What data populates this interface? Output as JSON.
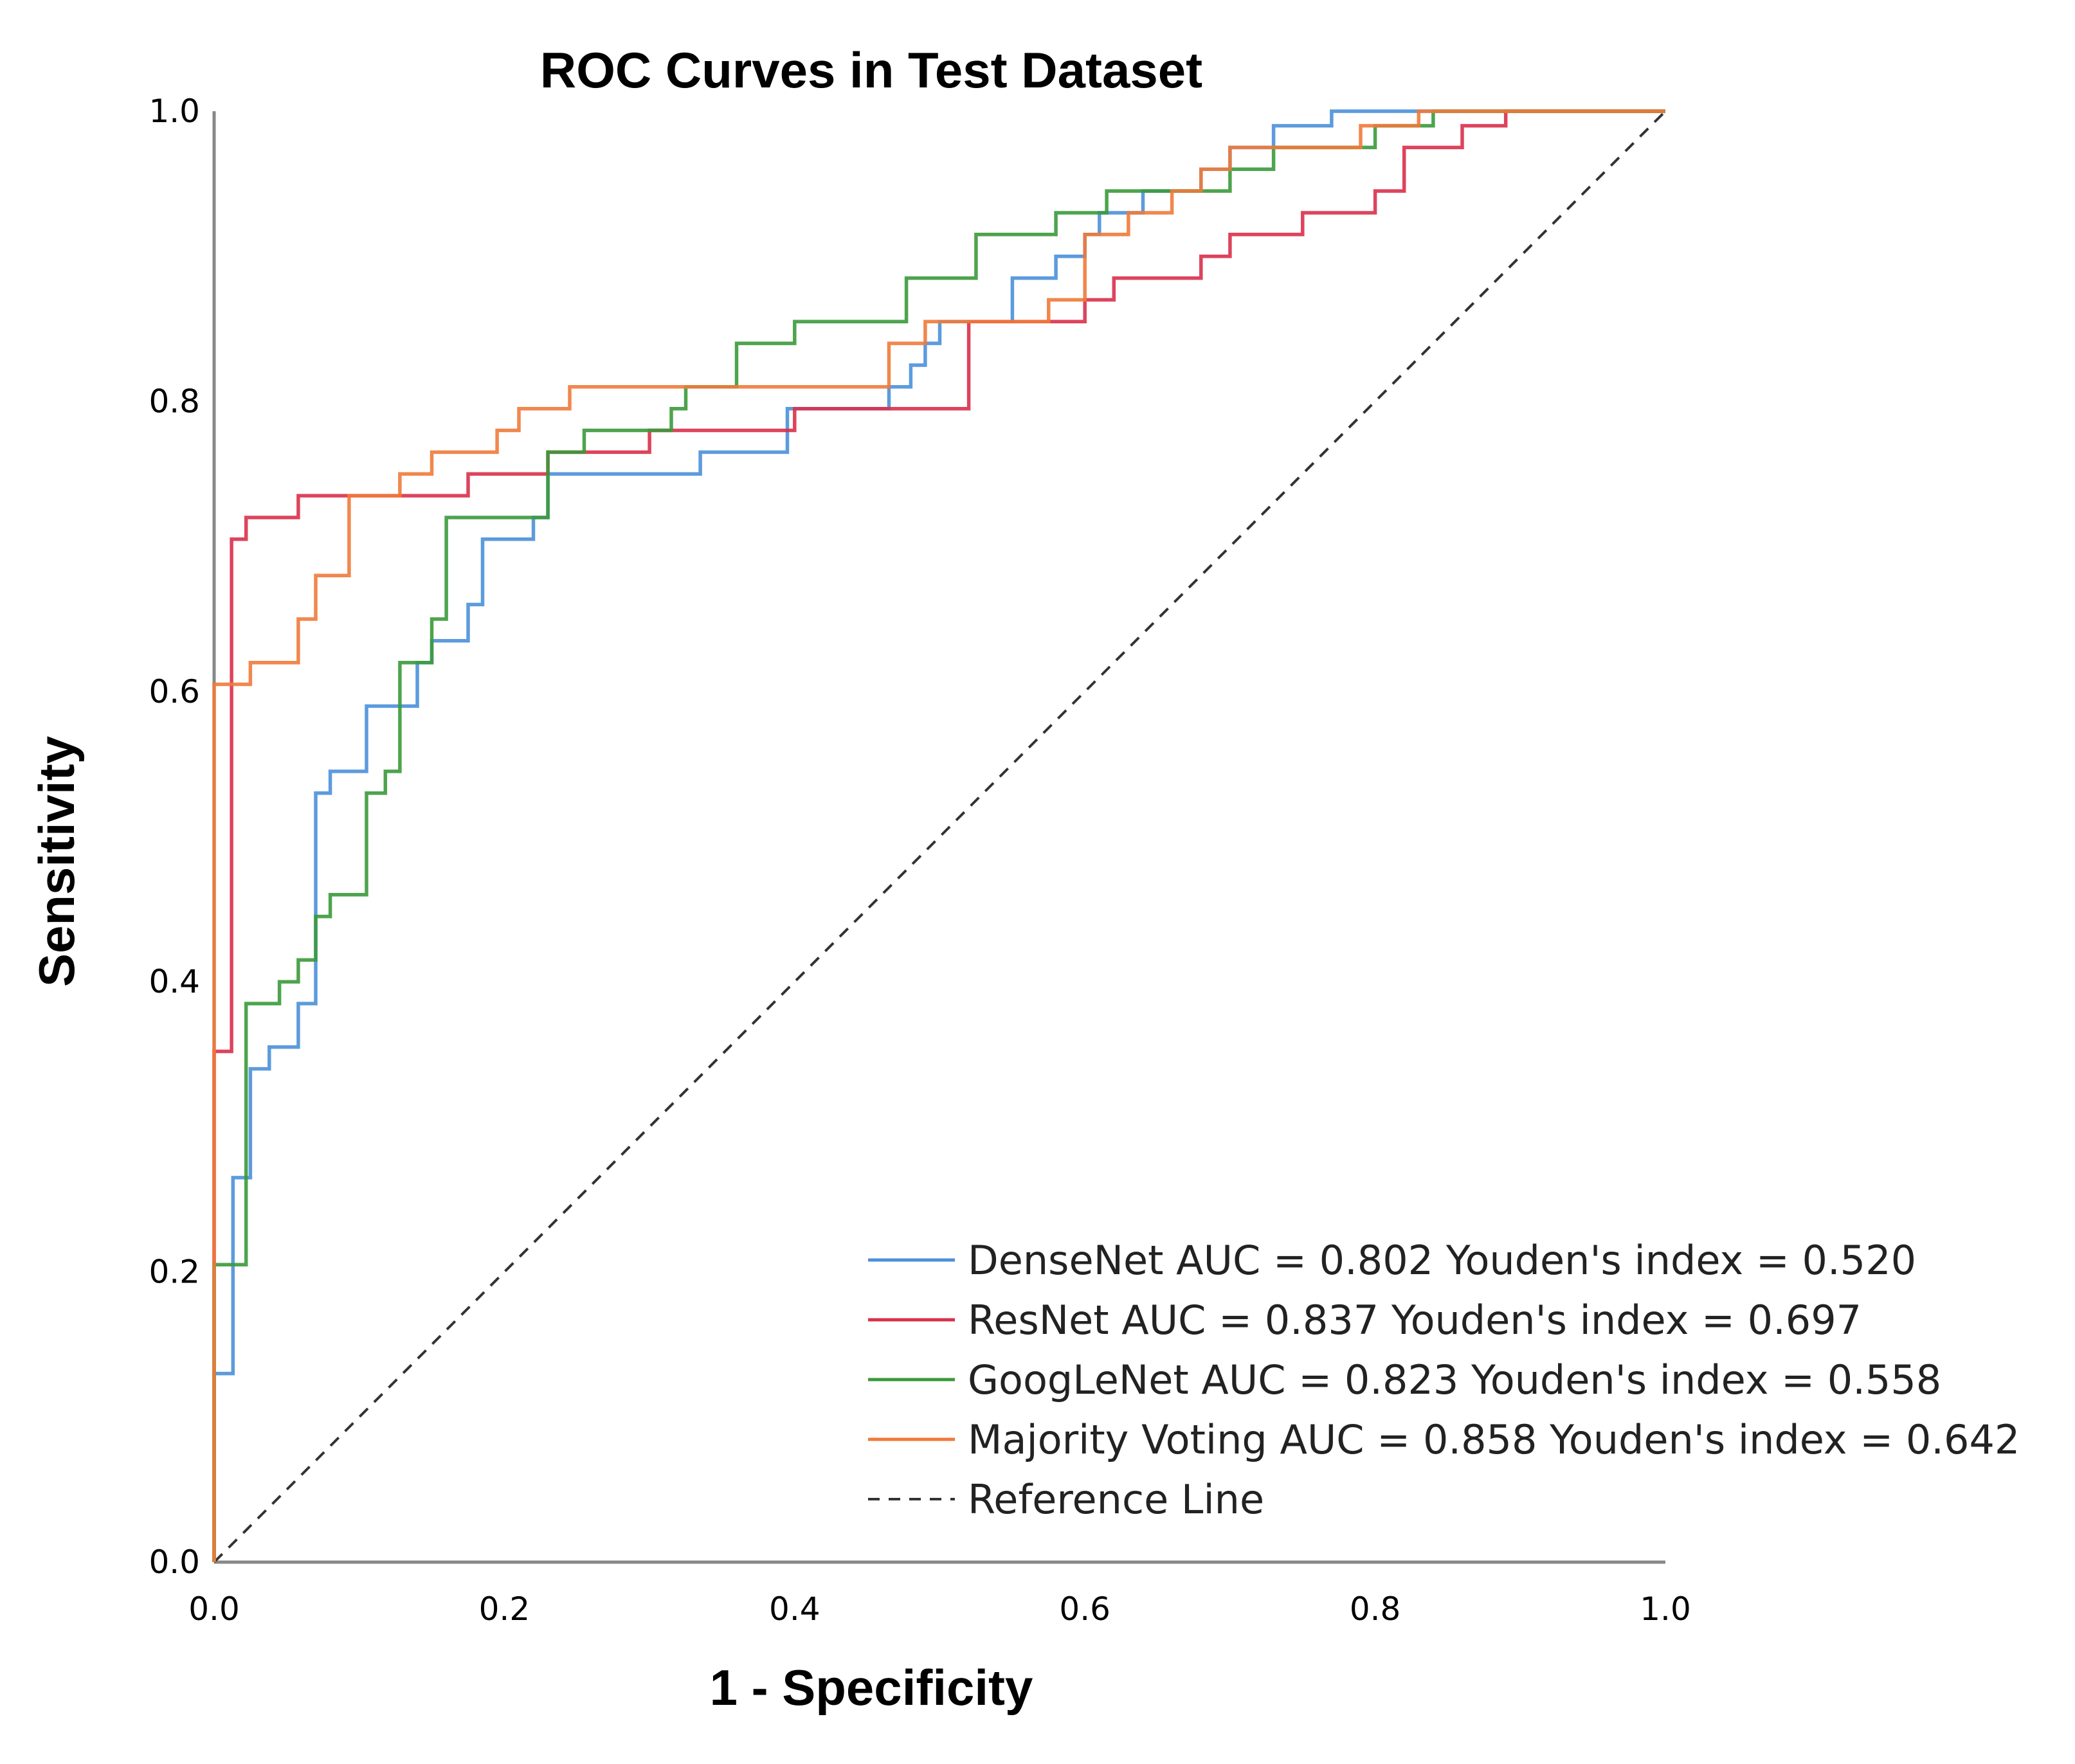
{
  "chart_data": {
    "type": "line",
    "title": "ROC Curves in Test Dataset",
    "xlabel": "1 - Specificity",
    "ylabel": "Sensitivity",
    "xlim": [
      0,
      1
    ],
    "ylim": [
      0,
      1
    ],
    "xticks": [
      "0.0",
      "0.2",
      "0.4",
      "0.6",
      "0.8",
      "1.0"
    ],
    "yticks": [
      "0.0",
      "0.2",
      "0.4",
      "0.6",
      "0.8",
      "1.0"
    ],
    "grid": false,
    "legend_position": "bottom-right",
    "series": [
      {
        "name": "DenseNet",
        "legend_label": "DenseNet AUC = 0.802 Youden's index = 0.520",
        "auc": 0.802,
        "youden_index": 0.52,
        "color": "#4a90d9",
        "points": [
          [
            0,
            0
          ],
          [
            0,
            0.13
          ],
          [
            0.013,
            0.13
          ],
          [
            0.013,
            0.265
          ],
          [
            0.025,
            0.265
          ],
          [
            0.025,
            0.34
          ],
          [
            0.038,
            0.34
          ],
          [
            0.038,
            0.355
          ],
          [
            0.058,
            0.355
          ],
          [
            0.058,
            0.385
          ],
          [
            0.07,
            0.385
          ],
          [
            0.07,
            0.53
          ],
          [
            0.08,
            0.53
          ],
          [
            0.08,
            0.545
          ],
          [
            0.105,
            0.545
          ],
          [
            0.105,
            0.59
          ],
          [
            0.14,
            0.59
          ],
          [
            0.14,
            0.62
          ],
          [
            0.15,
            0.62
          ],
          [
            0.15,
            0.635
          ],
          [
            0.175,
            0.635
          ],
          [
            0.175,
            0.66
          ],
          [
            0.185,
            0.66
          ],
          [
            0.185,
            0.705
          ],
          [
            0.22,
            0.705
          ],
          [
            0.22,
            0.72
          ],
          [
            0.23,
            0.72
          ],
          [
            0.23,
            0.75
          ],
          [
            0.335,
            0.75
          ],
          [
            0.335,
            0.765
          ],
          [
            0.395,
            0.765
          ],
          [
            0.395,
            0.795
          ],
          [
            0.465,
            0.795
          ],
          [
            0.465,
            0.81
          ],
          [
            0.48,
            0.81
          ],
          [
            0.48,
            0.825
          ],
          [
            0.49,
            0.825
          ],
          [
            0.49,
            0.84
          ],
          [
            0.5,
            0.84
          ],
          [
            0.5,
            0.855
          ],
          [
            0.55,
            0.855
          ],
          [
            0.55,
            0.885
          ],
          [
            0.58,
            0.885
          ],
          [
            0.58,
            0.9
          ],
          [
            0.6,
            0.9
          ],
          [
            0.6,
            0.915
          ],
          [
            0.61,
            0.915
          ],
          [
            0.61,
            0.93
          ],
          [
            0.64,
            0.93
          ],
          [
            0.64,
            0.945
          ],
          [
            0.68,
            0.945
          ],
          [
            0.68,
            0.96
          ],
          [
            0.7,
            0.96
          ],
          [
            0.7,
            0.975
          ],
          [
            0.73,
            0.975
          ],
          [
            0.73,
            0.99
          ],
          [
            0.77,
            0.99
          ],
          [
            0.77,
            1
          ],
          [
            1,
            1
          ]
        ]
      },
      {
        "name": "ResNet",
        "legend_label": "ResNet AUC = 0.837 Youden's index = 0.697",
        "auc": 0.837,
        "youden_index": 0.697,
        "color": "#d9304a",
        "points": [
          [
            0,
            0
          ],
          [
            0,
            0.352
          ],
          [
            0.012,
            0.352
          ],
          [
            0.012,
            0.705
          ],
          [
            0.022,
            0.705
          ],
          [
            0.022,
            0.72
          ],
          [
            0.058,
            0.72
          ],
          [
            0.058,
            0.735
          ],
          [
            0.175,
            0.735
          ],
          [
            0.175,
            0.75
          ],
          [
            0.23,
            0.75
          ],
          [
            0.23,
            0.765
          ],
          [
            0.3,
            0.765
          ],
          [
            0.3,
            0.78
          ],
          [
            0.4,
            0.78
          ],
          [
            0.4,
            0.795
          ],
          [
            0.52,
            0.795
          ],
          [
            0.52,
            0.855
          ],
          [
            0.6,
            0.855
          ],
          [
            0.6,
            0.87
          ],
          [
            0.62,
            0.87
          ],
          [
            0.62,
            0.885
          ],
          [
            0.68,
            0.885
          ],
          [
            0.68,
            0.9
          ],
          [
            0.7,
            0.9
          ],
          [
            0.7,
            0.915
          ],
          [
            0.75,
            0.915
          ],
          [
            0.75,
            0.93
          ],
          [
            0.8,
            0.93
          ],
          [
            0.8,
            0.945
          ],
          [
            0.82,
            0.945
          ],
          [
            0.82,
            0.975
          ],
          [
            0.86,
            0.975
          ],
          [
            0.86,
            0.99
          ],
          [
            0.89,
            0.99
          ],
          [
            0.89,
            1
          ],
          [
            1,
            1
          ]
        ]
      },
      {
        "name": "GoogLeNet",
        "legend_label": "GoogLeNet AUC = 0.823 Youden's index = 0.558",
        "auc": 0.823,
        "youden_index": 0.558,
        "color": "#3a9a3a",
        "points": [
          [
            0,
            0
          ],
          [
            0,
            0.205
          ],
          [
            0.022,
            0.205
          ],
          [
            0.022,
            0.385
          ],
          [
            0.045,
            0.385
          ],
          [
            0.045,
            0.4
          ],
          [
            0.058,
            0.4
          ],
          [
            0.058,
            0.415
          ],
          [
            0.07,
            0.415
          ],
          [
            0.07,
            0.445
          ],
          [
            0.08,
            0.445
          ],
          [
            0.08,
            0.46
          ],
          [
            0.105,
            0.46
          ],
          [
            0.105,
            0.53
          ],
          [
            0.118,
            0.53
          ],
          [
            0.118,
            0.545
          ],
          [
            0.128,
            0.545
          ],
          [
            0.128,
            0.62
          ],
          [
            0.15,
            0.62
          ],
          [
            0.15,
            0.65
          ],
          [
            0.16,
            0.65
          ],
          [
            0.16,
            0.72
          ],
          [
            0.23,
            0.72
          ],
          [
            0.23,
            0.765
          ],
          [
            0.255,
            0.765
          ],
          [
            0.255,
            0.78
          ],
          [
            0.315,
            0.78
          ],
          [
            0.315,
            0.795
          ],
          [
            0.325,
            0.795
          ],
          [
            0.325,
            0.81
          ],
          [
            0.36,
            0.81
          ],
          [
            0.36,
            0.84
          ],
          [
            0.4,
            0.84
          ],
          [
            0.4,
            0.855
          ],
          [
            0.477,
            0.855
          ],
          [
            0.477,
            0.885
          ],
          [
            0.525,
            0.885
          ],
          [
            0.525,
            0.915
          ],
          [
            0.58,
            0.915
          ],
          [
            0.58,
            0.93
          ],
          [
            0.615,
            0.93
          ],
          [
            0.615,
            0.945
          ],
          [
            0.7,
            0.945
          ],
          [
            0.7,
            0.96
          ],
          [
            0.73,
            0.96
          ],
          [
            0.73,
            0.975
          ],
          [
            0.8,
            0.975
          ],
          [
            0.8,
            0.99
          ],
          [
            0.84,
            0.99
          ],
          [
            0.84,
            1
          ],
          [
            1,
            1
          ]
        ]
      },
      {
        "name": "Majority Voting",
        "legend_label": "Majority Voting AUC = 0.858 Youden's index = 0.642",
        "auc": 0.858,
        "youden_index": 0.642,
        "color": "#f07a3a",
        "points": [
          [
            0,
            0
          ],
          [
            0,
            0.605
          ],
          [
            0.025,
            0.605
          ],
          [
            0.025,
            0.62
          ],
          [
            0.058,
            0.62
          ],
          [
            0.058,
            0.65
          ],
          [
            0.07,
            0.65
          ],
          [
            0.07,
            0.68
          ],
          [
            0.093,
            0.68
          ],
          [
            0.093,
            0.735
          ],
          [
            0.128,
            0.735
          ],
          [
            0.128,
            0.75
          ],
          [
            0.15,
            0.75
          ],
          [
            0.15,
            0.765
          ],
          [
            0.195,
            0.765
          ],
          [
            0.195,
            0.78
          ],
          [
            0.21,
            0.78
          ],
          [
            0.21,
            0.795
          ],
          [
            0.245,
            0.795
          ],
          [
            0.245,
            0.81
          ],
          [
            0.465,
            0.81
          ],
          [
            0.465,
            0.84
          ],
          [
            0.49,
            0.84
          ],
          [
            0.49,
            0.855
          ],
          [
            0.575,
            0.855
          ],
          [
            0.575,
            0.87
          ],
          [
            0.6,
            0.87
          ],
          [
            0.6,
            0.915
          ],
          [
            0.63,
            0.915
          ],
          [
            0.63,
            0.93
          ],
          [
            0.66,
            0.93
          ],
          [
            0.66,
            0.945
          ],
          [
            0.68,
            0.945
          ],
          [
            0.68,
            0.96
          ],
          [
            0.7,
            0.96
          ],
          [
            0.7,
            0.975
          ],
          [
            0.79,
            0.975
          ],
          [
            0.79,
            0.99
          ],
          [
            0.83,
            0.99
          ],
          [
            0.83,
            1
          ],
          [
            1,
            1
          ]
        ]
      },
      {
        "name": "Reference Line",
        "legend_label": "Reference Line",
        "color": "#333333",
        "dashed": true,
        "points": [
          [
            0,
            0
          ],
          [
            1,
            1
          ]
        ]
      }
    ]
  }
}
